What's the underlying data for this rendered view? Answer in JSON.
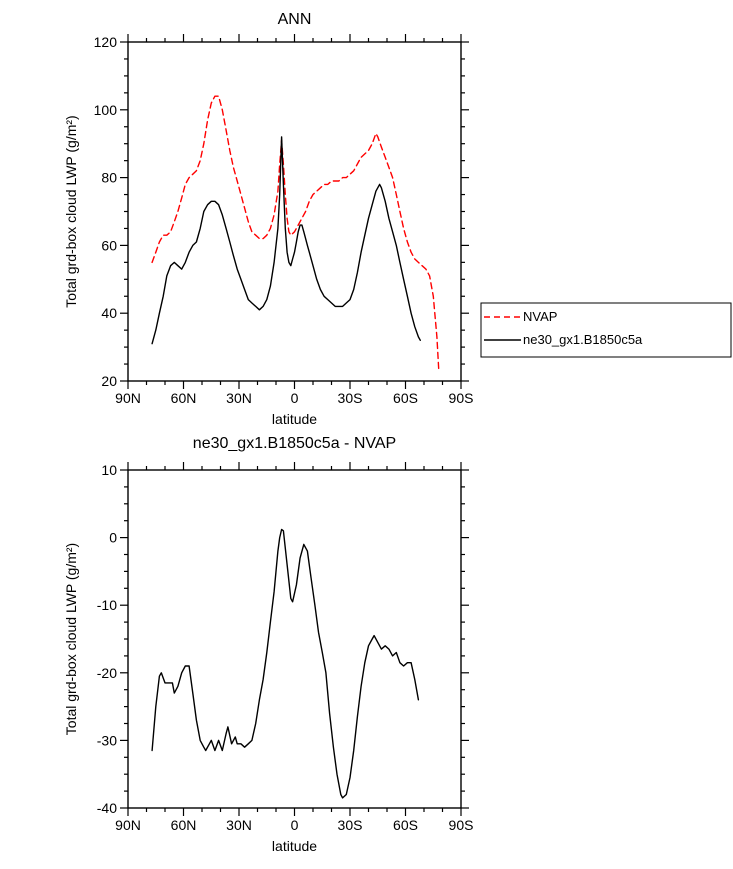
{
  "page": {
    "background": "#ffffff"
  },
  "chart_data": [
    {
      "type": "line",
      "title": "ANN",
      "xlabel": "latitude",
      "ylabel": "Total grd-box cloud LWP (g/m²)",
      "x_axis": {
        "min": 90,
        "max": -90,
        "tick_values": [
          90,
          60,
          30,
          0,
          -30,
          -60,
          -90
        ],
        "tick_labels": [
          "90N",
          "60N",
          "30N",
          "0",
          "30S",
          "60S",
          "90S"
        ],
        "minor_step": 10
      },
      "y_axis": {
        "min": 20,
        "max": 120,
        "tick_values": [
          20,
          40,
          60,
          80,
          100,
          120
        ],
        "tick_labels": [
          "20",
          "40",
          "60",
          "80",
          "100",
          "120"
        ],
        "minor_step": 5
      },
      "legend": {
        "entries": [
          {
            "label": "NVAP"
          },
          {
            "label": "ne30_gx1.B1850c5a"
          }
        ]
      },
      "series": [
        {
          "name": "NVAP",
          "color": "#ff0000",
          "dashed": true,
          "points": [
            [
              77,
              55
            ],
            [
              75,
              58
            ],
            [
              73,
              61
            ],
            [
              71,
              63
            ],
            [
              69,
              63
            ],
            [
              67,
              64
            ],
            [
              65,
              67
            ],
            [
              63,
              70
            ],
            [
              61,
              74
            ],
            [
              59,
              78
            ],
            [
              57,
              80
            ],
            [
              55,
              81
            ],
            [
              53,
              82
            ],
            [
              51,
              85
            ],
            [
              49,
              90
            ],
            [
              47,
              97
            ],
            [
              45,
              102
            ],
            [
              43,
              104
            ],
            [
              41,
              104
            ],
            [
              39,
              100
            ],
            [
              37,
              94
            ],
            [
              35,
              88
            ],
            [
              33,
              83
            ],
            [
              31,
              79
            ],
            [
              29,
              75
            ],
            [
              27,
              71
            ],
            [
              25,
              67
            ],
            [
              23,
              64
            ],
            [
              21,
              63
            ],
            [
              19,
              62
            ],
            [
              17,
              62
            ],
            [
              15,
              63
            ],
            [
              13,
              65
            ],
            [
              11,
              69
            ],
            [
              9,
              76
            ],
            [
              8,
              84
            ],
            [
              7,
              91
            ],
            [
              6,
              84
            ],
            [
              5,
              75
            ],
            [
              4,
              68
            ],
            [
              3,
              64
            ],
            [
              2,
              63
            ],
            [
              0,
              64
            ],
            [
              -2,
              66
            ],
            [
              -4,
              68
            ],
            [
              -6,
              70
            ],
            [
              -8,
              73
            ],
            [
              -10,
              75
            ],
            [
              -12,
              76
            ],
            [
              -14,
              77
            ],
            [
              -16,
              78
            ],
            [
              -18,
              78
            ],
            [
              -20,
              79
            ],
            [
              -22,
              79
            ],
            [
              -24,
              79
            ],
            [
              -26,
              80
            ],
            [
              -28,
              80
            ],
            [
              -30,
              81
            ],
            [
              -32,
              82
            ],
            [
              -34,
              84
            ],
            [
              -36,
              86
            ],
            [
              -38,
              87
            ],
            [
              -40,
              88
            ],
            [
              -42,
              90
            ],
            [
              -44,
              93
            ],
            [
              -45,
              92
            ],
            [
              -47,
              89
            ],
            [
              -49,
              86
            ],
            [
              -51,
              83
            ],
            [
              -53,
              80
            ],
            [
              -55,
              75
            ],
            [
              -57,
              70
            ],
            [
              -59,
              65
            ],
            [
              -61,
              61
            ],
            [
              -63,
              58
            ],
            [
              -65,
              56
            ],
            [
              -67,
              55
            ],
            [
              -69,
              54
            ],
            [
              -71,
              53
            ],
            [
              -73,
              51
            ],
            [
              -75,
              45
            ],
            [
              -77,
              33
            ],
            [
              -78,
              23
            ]
          ]
        },
        {
          "name": "ne30_gx1.B1850c5a",
          "color": "#000000",
          "dashed": false,
          "points": [
            [
              77,
              31
            ],
            [
              75,
              35
            ],
            [
              73,
              40
            ],
            [
              71,
              45
            ],
            [
              69,
              51
            ],
            [
              67,
              54
            ],
            [
              65,
              55
            ],
            [
              63,
              54
            ],
            [
              61,
              53
            ],
            [
              59,
              55
            ],
            [
              57,
              58
            ],
            [
              55,
              60
            ],
            [
              53,
              61
            ],
            [
              51,
              65
            ],
            [
              49,
              70
            ],
            [
              47,
              72
            ],
            [
              45,
              73
            ],
            [
              43,
              73
            ],
            [
              41,
              72
            ],
            [
              39,
              69
            ],
            [
              37,
              65
            ],
            [
              35,
              61
            ],
            [
              33,
              57
            ],
            [
              31,
              53
            ],
            [
              29,
              50
            ],
            [
              27,
              47
            ],
            [
              25,
              44
            ],
            [
              23,
              43
            ],
            [
              21,
              42
            ],
            [
              19,
              41
            ],
            [
              17,
              42
            ],
            [
              15,
              44
            ],
            [
              13,
              48
            ],
            [
              11,
              55
            ],
            [
              9,
              65
            ],
            [
              8,
              75
            ],
            [
              7,
              92
            ],
            [
              6,
              78
            ],
            [
              5,
              65
            ],
            [
              4,
              58
            ],
            [
              3,
              55
            ],
            [
              2,
              54
            ],
            [
              1,
              56
            ],
            [
              0,
              58
            ],
            [
              -1,
              61
            ],
            [
              -2,
              64
            ],
            [
              -3,
              66
            ],
            [
              -4,
              66
            ],
            [
              -5,
              64
            ],
            [
              -6,
              62
            ],
            [
              -7,
              60
            ],
            [
              -8,
              58
            ],
            [
              -10,
              54
            ],
            [
              -12,
              50
            ],
            [
              -14,
              47
            ],
            [
              -16,
              45
            ],
            [
              -18,
              44
            ],
            [
              -20,
              43
            ],
            [
              -22,
              42
            ],
            [
              -24,
              42
            ],
            [
              -26,
              42
            ],
            [
              -28,
              43
            ],
            [
              -30,
              44
            ],
            [
              -32,
              47
            ],
            [
              -34,
              52
            ],
            [
              -36,
              58
            ],
            [
              -38,
              63
            ],
            [
              -40,
              68
            ],
            [
              -42,
              72
            ],
            [
              -44,
              76
            ],
            [
              -46,
              78
            ],
            [
              -47,
              77
            ],
            [
              -49,
              73
            ],
            [
              -51,
              68
            ],
            [
              -53,
              64
            ],
            [
              -55,
              60
            ],
            [
              -57,
              55
            ],
            [
              -59,
              50
            ],
            [
              -61,
              45
            ],
            [
              -63,
              40
            ],
            [
              -65,
              36
            ],
            [
              -67,
              33
            ],
            [
              -68,
              32
            ]
          ]
        }
      ]
    },
    {
      "type": "line",
      "title": "ne30_gx1.B1850c5a - NVAP",
      "xlabel": "latitude",
      "ylabel": "Total grd-box cloud LWP (g/m²)",
      "x_axis": {
        "min": 90,
        "max": -90,
        "tick_values": [
          90,
          60,
          30,
          0,
          -30,
          -60,
          -90
        ],
        "tick_labels": [
          "90N",
          "60N",
          "30N",
          "0",
          "30S",
          "60S",
          "90S"
        ],
        "minor_step": 10
      },
      "y_axis": {
        "min": -40,
        "max": 10,
        "tick_values": [
          -40,
          -30,
          -20,
          -10,
          0,
          10
        ],
        "tick_labels": [
          "-40",
          "-30",
          "-20",
          "-10",
          "0",
          "10"
        ],
        "minor_step": 2.5
      },
      "series": [
        {
          "name": "ne30_gx1.B1850c5a - NVAP",
          "color": "#000000",
          "dashed": false,
          "points": [
            [
              77,
              -31.5
            ],
            [
              75,
              -25
            ],
            [
              73,
              -20.5
            ],
            [
              72,
              -20
            ],
            [
              70,
              -21.5
            ],
            [
              68,
              -21.5
            ],
            [
              66,
              -21.5
            ],
            [
              65,
              -23
            ],
            [
              63,
              -22
            ],
            [
              61,
              -20
            ],
            [
              59,
              -19
            ],
            [
              57,
              -19
            ],
            [
              55,
              -23
            ],
            [
              53,
              -27
            ],
            [
              51,
              -30
            ],
            [
              49,
              -31
            ],
            [
              48,
              -31.5
            ],
            [
              46,
              -30.5
            ],
            [
              45,
              -30
            ],
            [
              43,
              -31.5
            ],
            [
              41,
              -30
            ],
            [
              39,
              -31.5
            ],
            [
              37,
              -29
            ],
            [
              36,
              -28
            ],
            [
              34,
              -30.5
            ],
            [
              32,
              -29.5
            ],
            [
              31,
              -30.5
            ],
            [
              29,
              -30.5
            ],
            [
              27,
              -31
            ],
            [
              25,
              -30.5
            ],
            [
              23,
              -30
            ],
            [
              21,
              -27.5
            ],
            [
              19,
              -24
            ],
            [
              17,
              -21
            ],
            [
              15,
              -17
            ],
            [
              13,
              -12.5
            ],
            [
              11,
              -8
            ],
            [
              9,
              -2
            ],
            [
              8,
              0
            ],
            [
              7,
              1.2
            ],
            [
              6,
              1
            ],
            [
              4,
              -4
            ],
            [
              2,
              -9
            ],
            [
              1,
              -9.5
            ],
            [
              -1,
              -7
            ],
            [
              -3,
              -3
            ],
            [
              -5,
              -1
            ],
            [
              -7,
              -2
            ],
            [
              -9,
              -6
            ],
            [
              -11,
              -10
            ],
            [
              -13,
              -14
            ],
            [
              -15,
              -17
            ],
            [
              -17,
              -20
            ],
            [
              -19,
              -26
            ],
            [
              -21,
              -31
            ],
            [
              -23,
              -35
            ],
            [
              -25,
              -38
            ],
            [
              -26,
              -38.5
            ],
            [
              -28,
              -38
            ],
            [
              -30,
              -35.5
            ],
            [
              -32,
              -31.5
            ],
            [
              -34,
              -26.5
            ],
            [
              -36,
              -22
            ],
            [
              -38,
              -18.5
            ],
            [
              -40,
              -16
            ],
            [
              -42,
              -15
            ],
            [
              -43,
              -14.5
            ],
            [
              -45,
              -15.5
            ],
            [
              -47,
              -16.5
            ],
            [
              -49,
              -16
            ],
            [
              -51,
              -16.5
            ],
            [
              -53,
              -17.5
            ],
            [
              -55,
              -17
            ],
            [
              -57,
              -18.5
            ],
            [
              -59,
              -19
            ],
            [
              -61,
              -18.5
            ],
            [
              -63,
              -18.5
            ],
            [
              -65,
              -21
            ],
            [
              -67,
              -24
            ]
          ]
        }
      ]
    }
  ]
}
